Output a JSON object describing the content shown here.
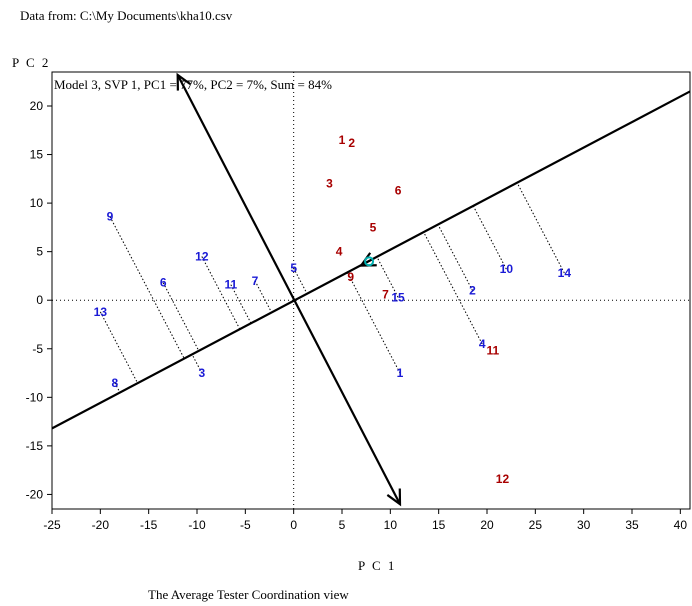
{
  "source_line": "Data from: C:\\My Documents\\kha10.csv",
  "caption": "The Average Tester Coordination view",
  "chart_data": {
    "type": "scatter",
    "title": "Model 3, SVP 1, PC1 = 77%, PC2 = 7%, Sum = 84%",
    "xlabel": "P C 1",
    "ylabel": "P C 2",
    "xlim": [
      -25,
      41
    ],
    "ylim": [
      -21.5,
      23.5
    ],
    "xticks": [
      -25,
      -20,
      -15,
      -10,
      -5,
      0,
      5,
      10,
      15,
      20,
      25,
      30,
      35,
      40
    ],
    "yticks": [
      -20,
      -15,
      -10,
      -5,
      0,
      5,
      10,
      15,
      20
    ],
    "colors": {
      "blue_group": "#1a1ad6",
      "red_group": "#a80000",
      "axis": "#000000",
      "marker": "#00b0b0"
    },
    "blue_points": [
      {
        "label": "1",
        "x": 11,
        "y": -7.5
      },
      {
        "label": "2",
        "x": 18.5,
        "y": 1
      },
      {
        "label": "3",
        "x": -9.5,
        "y": -7.5
      },
      {
        "label": "4",
        "x": 19.5,
        "y": -4.5
      },
      {
        "label": "5",
        "x": 0,
        "y": 3.3
      },
      {
        "label": "6",
        "x": -13.5,
        "y": 1.8
      },
      {
        "label": "7",
        "x": -4,
        "y": 2
      },
      {
        "label": "8",
        "x": -18.5,
        "y": -8.5
      },
      {
        "label": "9",
        "x": -19,
        "y": 8.6
      },
      {
        "label": "10",
        "x": 22,
        "y": 3.2
      },
      {
        "label": "11",
        "x": -6.5,
        "y": 1.6
      },
      {
        "label": "12",
        "x": -9.5,
        "y": 4.5
      },
      {
        "label": "13",
        "x": -20,
        "y": -1.2
      },
      {
        "label": "14",
        "x": 28,
        "y": 2.8
      },
      {
        "label": "15",
        "x": 10.8,
        "y": 0.3
      }
    ],
    "red_points": [
      {
        "label": "1",
        "x": 5,
        "y": 16.5
      },
      {
        "label": "2",
        "x": 6,
        "y": 16.2
      },
      {
        "label": "3",
        "x": 3.7,
        "y": 12
      },
      {
        "label": "4",
        "x": 4.7,
        "y": 5
      },
      {
        "label": "5",
        "x": 8.2,
        "y": 7.5
      },
      {
        "label": "6",
        "x": 10.8,
        "y": 11.3
      },
      {
        "label": "7",
        "x": 9.5,
        "y": 0.6
      },
      {
        "label": "9",
        "x": 5.9,
        "y": 2.4
      },
      {
        "label": "11",
        "x": 20.6,
        "y": -5.2
      },
      {
        "label": "12",
        "x": 21.6,
        "y": -18.4
      }
    ],
    "average_tester": {
      "x": 7.8,
      "y": 4
    },
    "ate_axis_ends": [
      {
        "x": -25,
        "y": -13.2
      },
      {
        "x": 41,
        "y": 21.5
      }
    ],
    "perp_arrow_ends": [
      {
        "x": -12,
        "y": 23.2
      },
      {
        "x": 11,
        "y": -21
      }
    ]
  }
}
